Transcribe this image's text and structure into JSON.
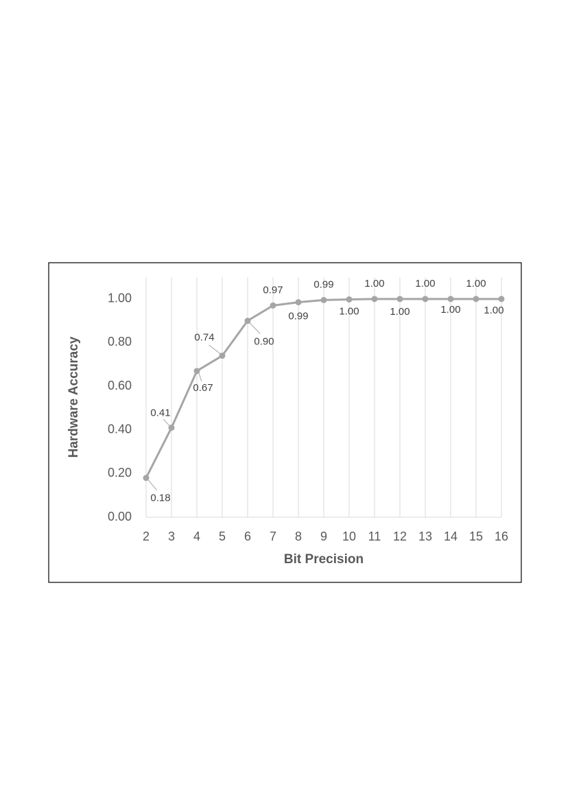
{
  "chart_data": {
    "type": "line",
    "x_label": "Bit Precision",
    "y_label": "Hardware Accuracy",
    "x": [
      2,
      3,
      4,
      5,
      6,
      7,
      8,
      9,
      10,
      11,
      12,
      13,
      14,
      15,
      16
    ],
    "series": [
      {
        "name": "Hardware Accuracy",
        "color": "#a5a5a5",
        "values": [
          0.18,
          0.41,
          0.67,
          0.74,
          0.9,
          0.97,
          0.985,
          0.995,
          0.998,
          1.0,
          1.0,
          1.0,
          1.0,
          1.0,
          1.0
        ],
        "value_labels": [
          "0.18",
          "0.41",
          "0.67",
          "0.74",
          "0.90",
          "0.97",
          "0.99",
          "0.99",
          "1.00",
          "1.00",
          "1.00",
          "1.00",
          "1.00",
          "1.00",
          "1.00"
        ]
      }
    ],
    "xlim": [
      2,
      16
    ],
    "xticks": [
      2,
      3,
      4,
      5,
      6,
      7,
      8,
      9,
      10,
      11,
      12,
      13,
      14,
      15,
      16
    ],
    "ylim": [
      0,
      1.1
    ],
    "yticks": [
      {
        "value": 0,
        "label": "0.00"
      },
      {
        "value": 0.2,
        "label": "0.20"
      },
      {
        "value": 0.4,
        "label": "0.40"
      },
      {
        "value": 0.6,
        "label": "0.60"
      },
      {
        "value": 0.8,
        "label": "0.80"
      },
      {
        "value": 1.0,
        "label": "1.00"
      }
    ],
    "grid": "x"
  }
}
